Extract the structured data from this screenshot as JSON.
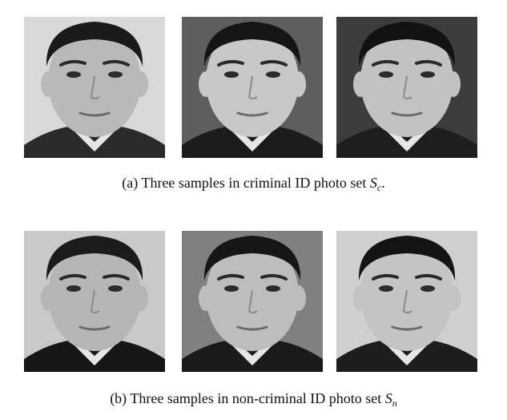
{
  "figure": {
    "panel_a": {
      "label": "(a)",
      "caption_text": "Three samples in criminal ID photo set",
      "set_symbol": "S",
      "set_subscript": "c",
      "trailing": ".",
      "photos": [
        {
          "name": "criminal-id-photo-1",
          "background": "#d9d9d9",
          "skin": "#b9b9b9",
          "hair": "#1a1a1a",
          "clothing": "#2a2a2a"
        },
        {
          "name": "criminal-id-photo-2",
          "background": "#5e5e5e",
          "skin": "#c8c8c8",
          "hair": "#151515",
          "clothing": "#1c1c1c"
        },
        {
          "name": "criminal-id-photo-3",
          "background": "#3c3c3c",
          "skin": "#c2c2c2",
          "hair": "#121212",
          "clothing": "#1e1e1e"
        }
      ]
    },
    "panel_b": {
      "label": "(b)",
      "caption_text": "Three samples in non-criminal ID photo set",
      "set_symbol": "S",
      "set_subscript": "n",
      "trailing": "",
      "photos": [
        {
          "name": "non-criminal-id-photo-1",
          "background": "#c9c9c9",
          "skin": "#b6b6b6",
          "hair": "#1b1b1b",
          "clothing": "#161616"
        },
        {
          "name": "non-criminal-id-photo-2",
          "background": "#808080",
          "skin": "#bdbdbd",
          "hair": "#161616",
          "clothing": "#1a1a1a"
        },
        {
          "name": "non-criminal-id-photo-3",
          "background": "#cfcfcf",
          "skin": "#c4c4c4",
          "hair": "#141414",
          "clothing": "#1d1d1d"
        }
      ]
    }
  }
}
